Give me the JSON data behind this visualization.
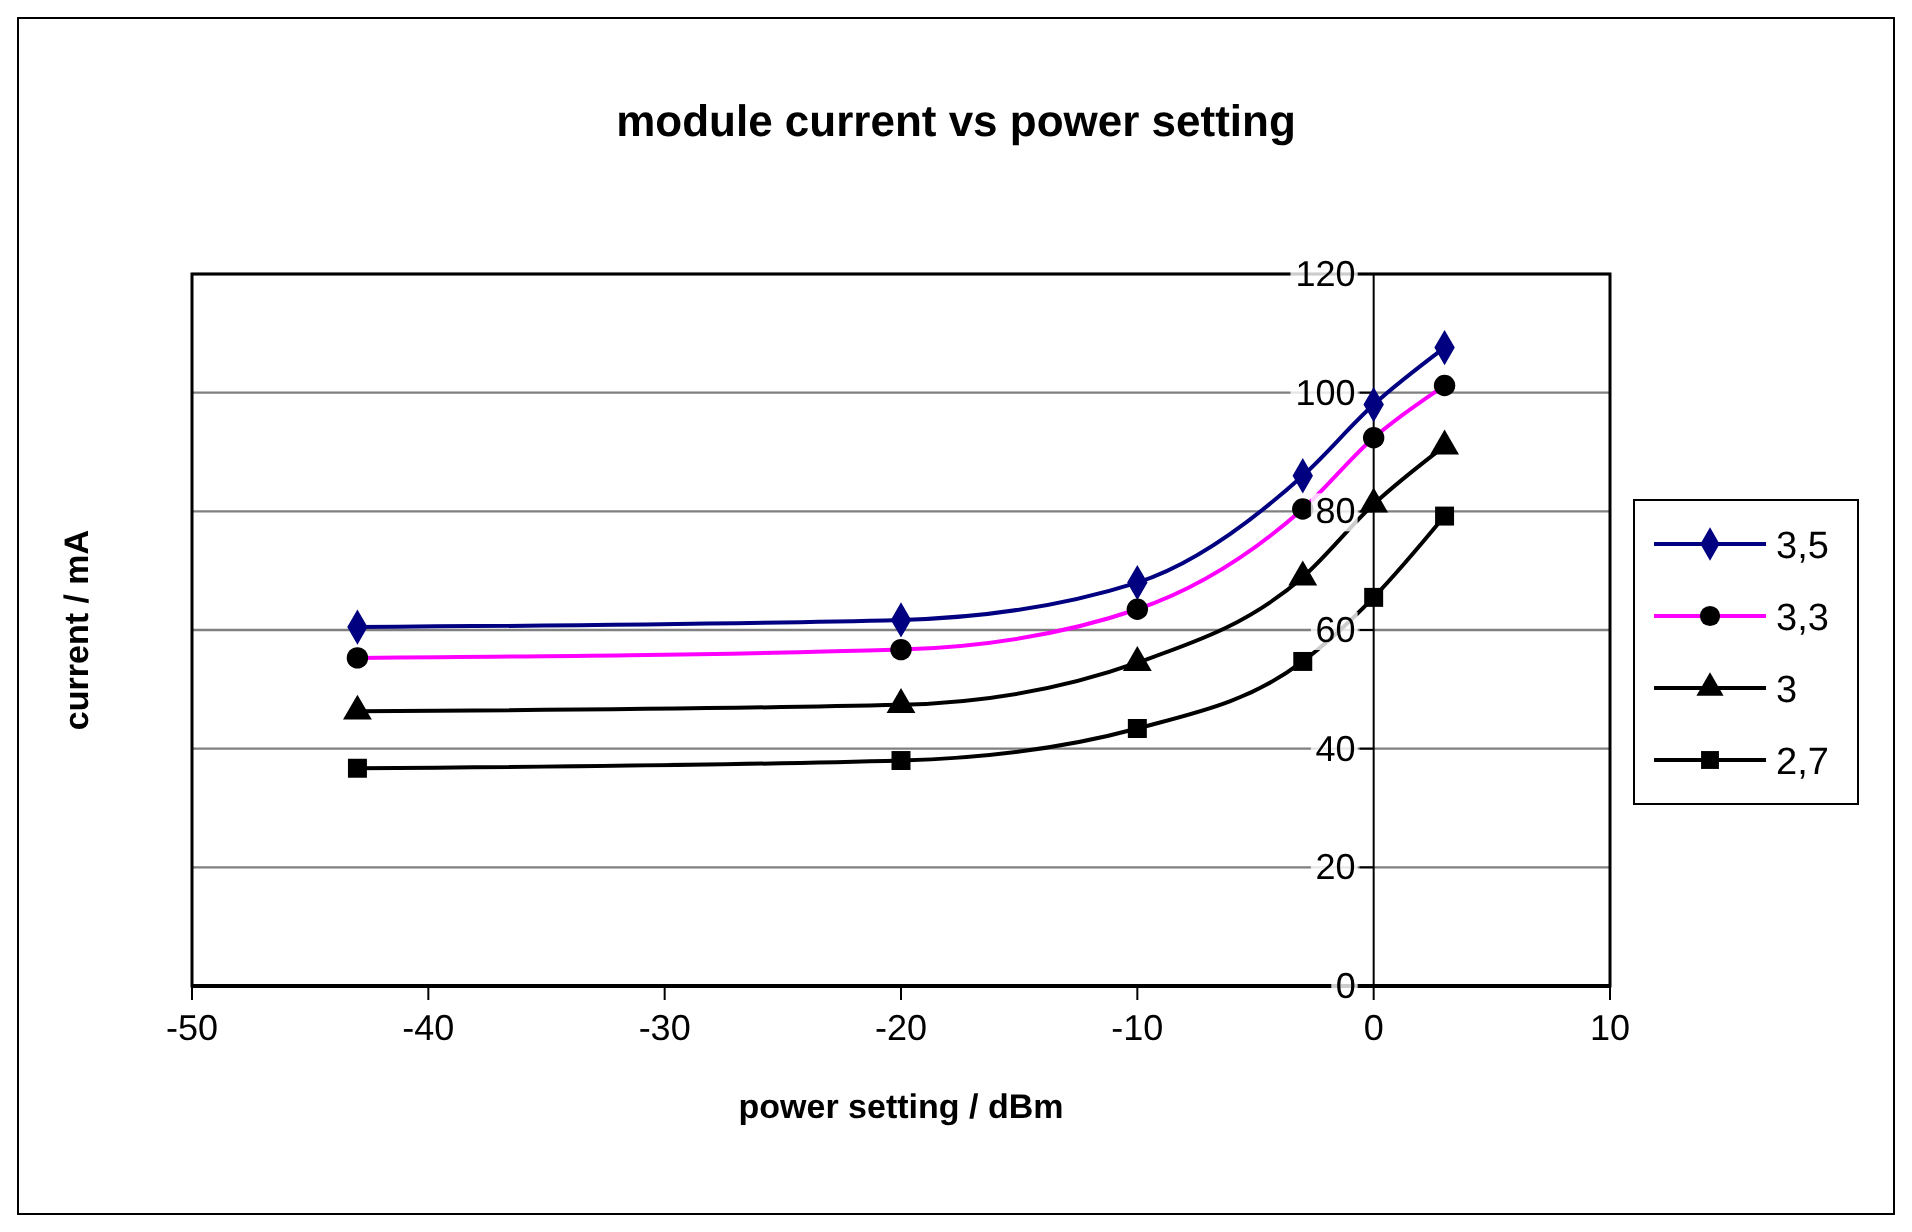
{
  "chart_data": {
    "type": "line",
    "title": "module current vs power setting",
    "xlabel": "power setting / dBm",
    "ylabel": "current / mA",
    "x": [
      -43,
      -20,
      -10,
      -3,
      0,
      3
    ],
    "series": [
      {
        "name": "3,5",
        "color": "#000080",
        "marker": "diamond",
        "values": [
          60.5,
          61.7,
          68,
          86,
          98,
          107.6
        ]
      },
      {
        "name": "3,3",
        "color": "#ff00ff",
        "marker": "circle",
        "values": [
          55.3,
          56.7,
          63.5,
          80.4,
          92.4,
          101.2
        ]
      },
      {
        "name": "3",
        "color": "#000000",
        "marker": "triangle",
        "values": [
          46.3,
          47.4,
          54.5,
          68.9,
          81.2,
          91
        ]
      },
      {
        "name": "2,7",
        "color": "#000000",
        "marker": "square",
        "values": [
          36.7,
          38,
          43.4,
          54.7,
          65.5,
          79.2
        ]
      }
    ],
    "xlim": [
      -50,
      10
    ],
    "xticks": [
      -50,
      -40,
      -30,
      -20,
      -10,
      0,
      10
    ],
    "ylim": [
      0,
      120
    ],
    "yticks": [
      0,
      20,
      40,
      60,
      80,
      100,
      120
    ],
    "grid": "y",
    "legend": "right",
    "line_style": "solid"
  }
}
